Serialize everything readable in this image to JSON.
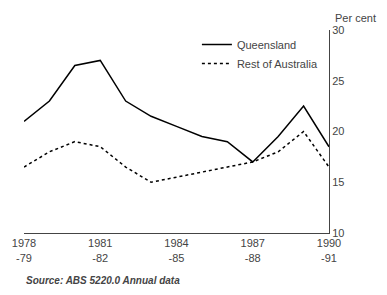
{
  "chart_data": {
    "type": "line",
    "y_label": "Per cent",
    "categories": [
      "1978\n-79",
      null,
      null,
      "1981\n-82",
      null,
      null,
      "1984\n-85",
      null,
      null,
      "1987\n-88",
      null,
      null,
      "1990\n-91"
    ],
    "series": [
      {
        "name": "Queensland",
        "color": "black",
        "line_style": "solid",
        "values": [
          21.0,
          23.0,
          26.5,
          27.0,
          23.0,
          21.5,
          20.5,
          19.5,
          19.0,
          17.0,
          19.5,
          22.5,
          18.5
        ]
      },
      {
        "name": "Rest of Australia",
        "color": "black",
        "line_style": "dotted",
        "values": [
          16.5,
          18.0,
          19.0,
          18.5,
          16.5,
          15.0,
          15.5,
          16.0,
          16.5,
          17.0,
          18.0,
          20.0,
          16.5
        ]
      }
    ],
    "ylim": [
      10,
      30
    ],
    "yticks": [
      10,
      15,
      20,
      25,
      30
    ],
    "grid": false,
    "legend": "upper right",
    "annotations": [
      "Source: ABS 5220.0 Annual data"
    ]
  }
}
